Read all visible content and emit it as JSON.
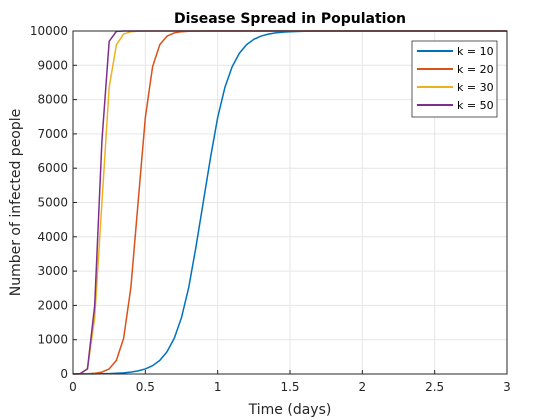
{
  "chart_data": {
    "type": "line",
    "title": "Disease Spread in Population",
    "xlabel": "Time (days)",
    "ylabel": "Number of infected people",
    "xlim": [
      0,
      3
    ],
    "ylim": [
      0,
      10000
    ],
    "x_ticks": [
      0,
      0.5,
      1,
      1.5,
      2,
      2.5,
      3
    ],
    "x_tick_labels": [
      "0",
      "0.5",
      "1",
      "1.5",
      "2",
      "2.5",
      "3"
    ],
    "y_ticks": [
      0,
      1000,
      2000,
      3000,
      4000,
      5000,
      6000,
      7000,
      8000,
      9000,
      10000
    ],
    "y_tick_labels": [
      "0",
      "1000",
      "2000",
      "3000",
      "4000",
      "5000",
      "6000",
      "7000",
      "8000",
      "9000",
      "10000"
    ],
    "grid": true,
    "legend_position": "top-right",
    "x": [
      0,
      0.05,
      0.1,
      0.15,
      0.2,
      0.25,
      0.3,
      0.35,
      0.4,
      0.45,
      0.5,
      0.55,
      0.6,
      0.65,
      0.7,
      0.75,
      0.8,
      0.85,
      0.9,
      0.95,
      1.0,
      1.05,
      1.1,
      1.15,
      1.2,
      1.25,
      1.3,
      1.35,
      1.4,
      1.45,
      1.5,
      1.6,
      1.7,
      1.8,
      2.0,
      2.5,
      3.0
    ],
    "series": [
      {
        "name": "k = 10",
        "color": "#0072bd",
        "values": [
          1,
          2,
          3,
          4,
          7,
          12,
          20,
          33,
          55,
          90,
          148,
          243,
          398,
          648,
          1042,
          1645,
          2522,
          3708,
          5000,
          6292,
          7478,
          8355,
          8958,
          9352,
          9602,
          9757,
          9852,
          9910,
          9945,
          9967,
          9980,
          9993,
          9997,
          9999,
          10000,
          10000,
          10000
        ]
      },
      {
        "name": "k = 20",
        "color": "#d95319",
        "values": [
          1,
          3,
          7,
          20,
          55,
          148,
          398,
          1042,
          2522,
          5000,
          7478,
          8958,
          9602,
          9852,
          9945,
          9980,
          9993,
          9997,
          9999,
          10000,
          10000,
          10000,
          10000,
          10000,
          10000,
          10000,
          10000,
          10000,
          10000,
          10000,
          10000,
          10000,
          10000,
          10000,
          10000,
          10000,
          10000
        ]
      },
      {
        "name": "k = 30",
        "color": "#edb120",
        "values": [
          1,
          12,
          148,
          1645,
          5000,
          8355,
          9602,
          9910,
          9980,
          9996,
          9999,
          10000,
          10000,
          10000,
          10000,
          10000,
          10000,
          10000,
          10000,
          10000,
          10000,
          10000,
          10000,
          10000,
          10000,
          10000,
          10000,
          10000,
          10000,
          10000,
          10000,
          10000,
          10000,
          10000,
          10000,
          10000,
          10000
        ]
      },
      {
        "name": "k = 50",
        "color": "#7e2f8e",
        "values": [
          1,
          10,
          150,
          2000,
          6800,
          9700,
          9990,
          10000,
          10000,
          10000,
          10000,
          10000,
          10000,
          10000,
          10000,
          10000,
          10000,
          10000,
          10000,
          10000,
          10000,
          10000,
          10000,
          10000,
          10000,
          10000,
          10000,
          10000,
          10000,
          10000,
          10000,
          10000,
          10000,
          10000,
          10000,
          10000,
          10000
        ]
      }
    ]
  }
}
